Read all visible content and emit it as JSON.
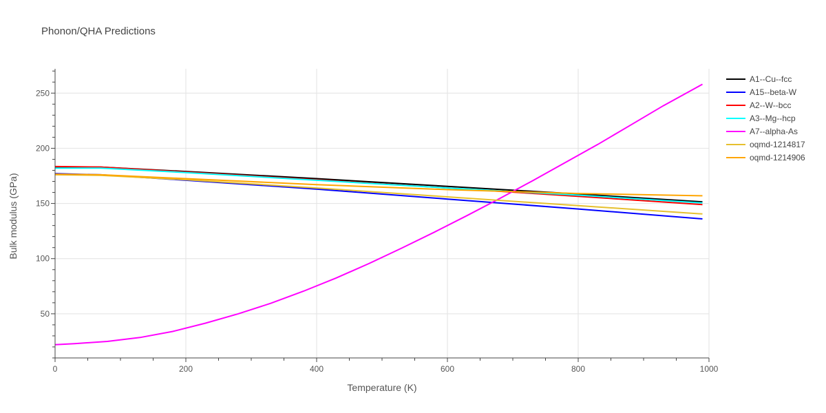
{
  "chart_data": {
    "type": "line",
    "title": "Phonon/QHA Predictions",
    "xlabel": "Temperature (K)",
    "ylabel": "Bulk modulus (GPa)",
    "xlim": [
      0,
      1000
    ],
    "ylim": [
      10,
      272
    ],
    "x_ticks": [
      0,
      200,
      400,
      600,
      800,
      1000
    ],
    "y_ticks": [
      50,
      100,
      150,
      200,
      250
    ],
    "grid": true,
    "legend_position": "right",
    "series": [
      {
        "name": "A1--Cu--fcc",
        "color": "#000000",
        "x": [
          0,
          70,
          200,
          400,
          600,
          800,
          990
        ],
        "y": [
          183,
          183,
          179,
          172.5,
          165.5,
          158.5,
          151.5
        ]
      },
      {
        "name": "A15--beta-W",
        "color": "#0000ff",
        "x": [
          0,
          70,
          200,
          400,
          600,
          800,
          990
        ],
        "y": [
          177,
          176,
          171,
          163,
          154,
          145,
          136
        ]
      },
      {
        "name": "A2--W--bcc",
        "color": "#ff0000",
        "x": [
          0,
          70,
          200,
          400,
          600,
          800,
          990
        ],
        "y": [
          183.5,
          183,
          178.5,
          171.5,
          164,
          156.5,
          149
        ]
      },
      {
        "name": "A3--Mg--hcp",
        "color": "#00ffff",
        "x": [
          0,
          70,
          200,
          400,
          600,
          800,
          990
        ],
        "y": [
          182,
          182,
          178,
          171,
          164,
          157.5,
          150.5
        ]
      },
      {
        "name": "A7--alpha-As",
        "color": "#ff00ff",
        "x": [
          0,
          30,
          80,
          130,
          180,
          230,
          280,
          330,
          380,
          430,
          480,
          530,
          580,
          630,
          680,
          730,
          780,
          830,
          880,
          930,
          990
        ],
        "y": [
          22,
          23,
          25,
          28.5,
          34,
          41.5,
          50,
          59.5,
          70.5,
          82.5,
          95.5,
          109.5,
          124,
          139,
          154.5,
          170.5,
          187,
          203.5,
          221,
          238.5,
          258
        ]
      },
      {
        "name": "oqmd-1214817",
        "color": "#e6c02e",
        "x": [
          0,
          70,
          200,
          400,
          600,
          800,
          990
        ],
        "y": [
          176,
          175.5,
          171.5,
          164,
          156,
          148,
          140.5
        ]
      },
      {
        "name": "oqmd-1214906",
        "color": "#ffa500",
        "x": [
          0,
          70,
          200,
          400,
          600,
          800,
          990
        ],
        "y": [
          176.5,
          176,
          172.5,
          167,
          162.5,
          159,
          157
        ]
      }
    ]
  }
}
